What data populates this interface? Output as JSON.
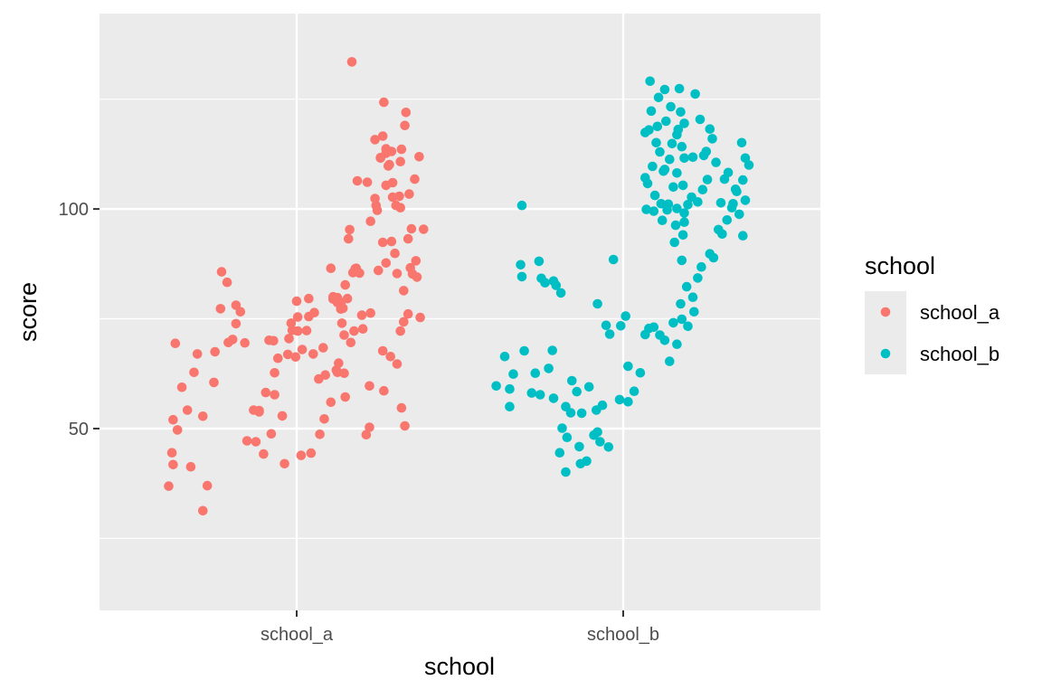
{
  "chart_data": {
    "type": "scatter",
    "title": "",
    "xlabel": "school",
    "ylabel": "score",
    "categories": [
      "school_a",
      "school_b"
    ],
    "ylim": [
      8.6,
      144.5
    ],
    "y_ticks": [
      50,
      100
    ],
    "grid": true,
    "legend": {
      "title": "school",
      "position": "right"
    },
    "colors": {
      "school_a": "#F8766D",
      "school_b": "#00BFC4",
      "panel": "#EBEBEB",
      "grid": "#FFFFFF"
    },
    "series": [
      {
        "name": "school_a",
        "color": "#F8766D",
        "points": [
          [
            0.75,
            133.5
          ],
          [
            0.76,
            85.5
          ],
          [
            0.92,
            76.3
          ],
          [
            0.79,
            86.5
          ],
          [
            0.73,
            95.3
          ],
          [
            0.74,
            69.6
          ],
          [
            0.72,
            93.2
          ],
          [
            0.85,
            72.7
          ],
          [
            0.78,
            86.4
          ],
          [
            1.03,
            67.7
          ],
          [
            0.82,
            85.4
          ],
          [
            1.04,
            58.6
          ],
          [
            0.8,
            106.4
          ],
          [
            0.84,
            75.8
          ],
          [
            0.88,
            48.6
          ],
          [
            0.77,
            72.2
          ],
          [
            0.98,
            99.7
          ],
          [
            0.92,
            97.2
          ],
          [
            0.99,
            86.0
          ],
          [
            0.91,
            59.7
          ],
          [
            0.91,
            50.3
          ],
          [
            0.96,
            115.8
          ],
          [
            1.09,
            110.1
          ],
          [
            0.96,
            102.4
          ],
          [
            0.97,
            100.8
          ],
          [
            1.06,
            113.7
          ],
          [
            1.03,
            116.6
          ],
          [
            1.08,
            109.8
          ],
          [
            1.11,
            92.6
          ],
          [
            1.14,
            89.9
          ],
          [
            1.01,
            111.6
          ],
          [
            1.04,
            124.3
          ],
          [
            1.11,
            113.1
          ],
          [
            1.01,
            111.7
          ],
          [
            0.89,
            106.1
          ],
          [
            1.23,
            119.0
          ],
          [
            1.29,
            95.5
          ],
          [
            1.36,
            111.9
          ],
          [
            1.19,
            110.8
          ],
          [
            1.24,
            122.0
          ],
          [
            1.32,
            106.8
          ],
          [
            1.4,
            95.4
          ],
          [
            1.3,
            85.2
          ],
          [
            1.37,
            75.3
          ],
          [
            1.33,
            88.2
          ],
          [
            1.26,
            93.2
          ],
          [
            1.34,
            84.5
          ],
          [
            1.26,
            76.1
          ],
          [
            1.22,
            81.4
          ],
          [
            1.19,
            72.2
          ],
          [
            1.1,
            66.4
          ],
          [
            1.16,
            64.7
          ],
          [
            1.2,
            54.7
          ],
          [
            1.23,
            50.6
          ],
          [
            1.28,
            86.6
          ],
          [
            1.16,
            85.3
          ],
          [
            1.06,
            87.7
          ],
          [
            1.03,
            92.4
          ],
          [
            1.18,
            102.9
          ],
          [
            1.06,
            105.4
          ],
          [
            1.06,
            112.7
          ],
          [
            1.27,
            103.4
          ],
          [
            1.12,
            102.7
          ],
          [
            1.12,
            106.0
          ],
          [
            1.19,
            100.3
          ],
          [
            1.2,
            113.6
          ],
          [
            1.15,
            100.8
          ],
          [
            1.22,
            74.3
          ],
          [
            0.69,
            57.2
          ],
          [
            0.68,
            62.6
          ],
          [
            0.69,
            82.7
          ],
          [
            0.71,
            79.6
          ],
          [
            0.67,
            77.4
          ],
          [
            0.68,
            71.3
          ],
          [
            0.65,
            78.7
          ],
          [
            0.65,
            77.2
          ],
          [
            0.66,
            74.0
          ],
          [
            0.62,
            78.7
          ],
          [
            0.62,
            79.8
          ],
          [
            0.63,
            64.9
          ],
          [
            0.62,
            62.8
          ],
          [
            0.61,
            63.3
          ],
          [
            0.58,
            80.0
          ],
          [
            0.58,
            79.5
          ],
          [
            0.56,
            86.5
          ],
          [
            0.56,
            56.0
          ],
          [
            0.51,
            62.2
          ],
          [
            0.49,
            68.4
          ],
          [
            0.45,
            61.3
          ],
          [
            0.5,
            52.2
          ],
          [
            0.46,
            48.7
          ],
          [
            0.38,
            44.4
          ],
          [
            0.36,
            79.6
          ],
          [
            0.36,
            75.5
          ],
          [
            0.41,
            76.4
          ],
          [
            0.4,
            67.0
          ],
          [
            0.34,
            72.3
          ],
          [
            0.3,
            68.0
          ],
          [
            0.29,
            43.9
          ],
          [
            0.25,
            79.0
          ],
          [
            0.26,
            75.4
          ],
          [
            0.26,
            72.2
          ],
          [
            0.24,
            66.3
          ],
          [
            0.21,
            72.4
          ],
          [
            0.2,
            74.0
          ],
          [
            0.17,
            66.9
          ],
          [
            0.18,
            70.5
          ],
          [
            0.14,
            42.0
          ],
          [
            0.12,
            52.9
          ],
          [
            0.08,
            66.0
          ],
          [
            0.05,
            57.7
          ],
          [
            0.05,
            62.7
          ],
          [
            0.04,
            70.0
          ],
          [
            0.02,
            48.8
          ],
          [
            0.0,
            70.1
          ],
          [
            -0.03,
            58.2
          ],
          [
            -0.05,
            44.2
          ],
          [
            -0.09,
            54.1
          ],
          [
            -0.09,
            53.8
          ],
          [
            -0.12,
            47.0
          ],
          [
            -0.14,
            54.2
          ],
          [
            -0.2,
            47.2
          ],
          [
            -0.22,
            69.5
          ],
          [
            -0.26,
            76.6
          ],
          [
            -0.3,
            78.1
          ],
          [
            -0.3,
            73.9
          ],
          [
            -0.33,
            70.3
          ],
          [
            -0.37,
            69.6
          ],
          [
            -0.38,
            83.3
          ],
          [
            -0.43,
            85.7
          ],
          [
            -0.44,
            77.3
          ],
          [
            -0.49,
            67.5
          ],
          [
            -0.5,
            60.5
          ],
          [
            -0.56,
            37.0
          ],
          [
            -0.6,
            31.3
          ],
          [
            -0.6,
            52.8
          ],
          [
            -0.65,
            67.0
          ],
          [
            -0.68,
            62.8
          ],
          [
            -0.71,
            41.3
          ],
          [
            -0.74,
            54.2
          ],
          [
            -0.79,
            59.4
          ],
          [
            -0.83,
            49.7
          ],
          [
            -0.87,
            41.8
          ],
          [
            -0.87,
            52.0
          ],
          [
            -0.91,
            36.9
          ],
          [
            -0.88,
            44.5
          ],
          [
            -0.85,
            69.4
          ]
        ]
      },
      {
        "name": "school_b",
        "color": "#00BFC4",
        "points": [
          [
            0.58,
            66.4
          ],
          [
            0.51,
            59.7
          ],
          [
            0.71,
            87.3
          ],
          [
            0.65,
            62.4
          ],
          [
            0.62,
            55.0
          ],
          [
            0.62,
            59.0
          ],
          [
            0.72,
            100.8
          ],
          [
            0.74,
            67.7
          ],
          [
            0.72,
            84.6
          ],
          [
            0.86,
            88.1
          ],
          [
            0.91,
            83.2
          ],
          [
            0.98,
            83.6
          ],
          [
            0.94,
            63.7
          ],
          [
            0.87,
            57.7
          ],
          [
            0.83,
            62.6
          ],
          [
            0.8,
            58.1
          ],
          [
            0.88,
            84.2
          ],
          [
            0.97,
            67.8
          ],
          [
            1.0,
            82.6
          ],
          [
            1.04,
            80.9
          ],
          [
            0.98,
            56.9
          ],
          [
            1.05,
            50.1
          ],
          [
            1.09,
            48.0
          ],
          [
            1.08,
            55.0
          ],
          [
            1.12,
            53.6
          ],
          [
            1.03,
            44.5
          ],
          [
            1.08,
            40.1
          ],
          [
            1.13,
            60.9
          ],
          [
            1.17,
            58.4
          ],
          [
            1.21,
            53.5
          ],
          [
            1.27,
            59.5
          ],
          [
            1.25,
            42.6
          ],
          [
            1.2,
            42.0
          ],
          [
            1.19,
            45.9
          ],
          [
            1.33,
            54.2
          ],
          [
            1.38,
            55.3
          ],
          [
            1.34,
            49.2
          ],
          [
            1.36,
            47.0
          ],
          [
            1.31,
            48.5
          ],
          [
            1.43,
            45.8
          ],
          [
            1.41,
            73.5
          ],
          [
            1.47,
            88.5
          ],
          [
            1.34,
            78.4
          ],
          [
            1.44,
            71.5
          ],
          [
            1.52,
            56.6
          ],
          [
            1.59,
            64.2
          ],
          [
            1.57,
            75.6
          ],
          [
            1.53,
            73.4
          ],
          [
            1.59,
            56.1
          ],
          [
            1.64,
            58.5
          ],
          [
            1.69,
            62.7
          ],
          [
            1.73,
            71.4
          ],
          [
            1.76,
            72.8
          ],
          [
            1.8,
            73.1
          ],
          [
            1.85,
            71.3
          ],
          [
            1.89,
            70.1
          ],
          [
            1.93,
            65.3
          ],
          [
            1.96,
            74.1
          ],
          [
            1.99,
            69.2
          ],
          [
            2.03,
            74.9
          ],
          [
            2.08,
            73.3
          ],
          [
            2.13,
            76.6
          ],
          [
            2.12,
            79.9
          ],
          [
            2.07,
            82.3
          ],
          [
            2.03,
            88.3
          ],
          [
            2.02,
            78.4
          ],
          [
            2.16,
            84.3
          ],
          [
            2.19,
            86.8
          ],
          [
            2.26,
            89.8
          ],
          [
            2.29,
            88.9
          ],
          [
            2.33,
            95.3
          ],
          [
            2.36,
            94.3
          ],
          [
            2.4,
            97.5
          ],
          [
            2.44,
            100.3
          ],
          [
            2.47,
            104.5
          ],
          [
            2.5,
            98.8
          ],
          [
            2.53,
            93.9
          ],
          [
            2.55,
            102.0
          ],
          [
            2.58,
            110.0
          ],
          [
            2.55,
            111.6
          ],
          [
            2.52,
            115.1
          ],
          [
            2.53,
            106.6
          ],
          [
            2.48,
            104.0
          ],
          [
            2.45,
            101.2
          ],
          [
            2.41,
            108.3
          ],
          [
            2.38,
            106.8
          ],
          [
            2.35,
            101.4
          ],
          [
            2.31,
            110.6
          ],
          [
            2.28,
            116.0
          ],
          [
            2.26,
            118.2
          ],
          [
            2.21,
            112.2
          ],
          [
            2.16,
            101.6
          ],
          [
            2.2,
            104.4
          ],
          [
            2.24,
            106.7
          ],
          [
            2.23,
            113.1
          ],
          [
            2.18,
            120.4
          ],
          [
            2.14,
            126.2
          ],
          [
            2.12,
            111.8
          ],
          [
            2.11,
            102.7
          ],
          [
            2.08,
            101.0
          ],
          [
            2.05,
            99.1
          ],
          [
            2.05,
            97.0
          ],
          [
            2.05,
            111.6
          ],
          [
            2.05,
            119.5
          ],
          [
            2.04,
            105.4
          ],
          [
            2.04,
            94.1
          ],
          [
            2.03,
            114.2
          ],
          [
            2.02,
            122.1
          ],
          [
            2.01,
            127.4
          ],
          [
            2.0,
            118.1
          ],
          [
            1.99,
            108.2
          ],
          [
            1.99,
            116.9
          ],
          [
            1.99,
            100.1
          ],
          [
            1.98,
            96.3
          ],
          [
            1.97,
            92.4
          ],
          [
            1.96,
            105.0
          ],
          [
            1.95,
            114.9
          ],
          [
            1.94,
            123.3
          ],
          [
            1.93,
            111.3
          ],
          [
            1.92,
            101.1
          ],
          [
            1.91,
            99.8
          ],
          [
            1.9,
            120.0
          ],
          [
            1.89,
            127.2
          ],
          [
            1.89,
            109.0
          ],
          [
            1.88,
            108.6
          ],
          [
            1.87,
            97.4
          ],
          [
            1.86,
            101.2
          ],
          [
            1.85,
            113.0
          ],
          [
            1.84,
            125.4
          ],
          [
            1.83,
            118.8
          ],
          [
            1.82,
            115.1
          ],
          [
            1.81,
            103.1
          ],
          [
            1.8,
            99.5
          ],
          [
            1.79,
            109.7
          ],
          [
            1.78,
            122.3
          ],
          [
            1.77,
            129.1
          ],
          [
            1.76,
            118.0
          ],
          [
            1.75,
            105.8
          ],
          [
            1.74,
            99.9
          ],
          [
            1.73,
            107.1
          ],
          [
            1.73,
            117.4
          ]
        ]
      }
    ]
  }
}
